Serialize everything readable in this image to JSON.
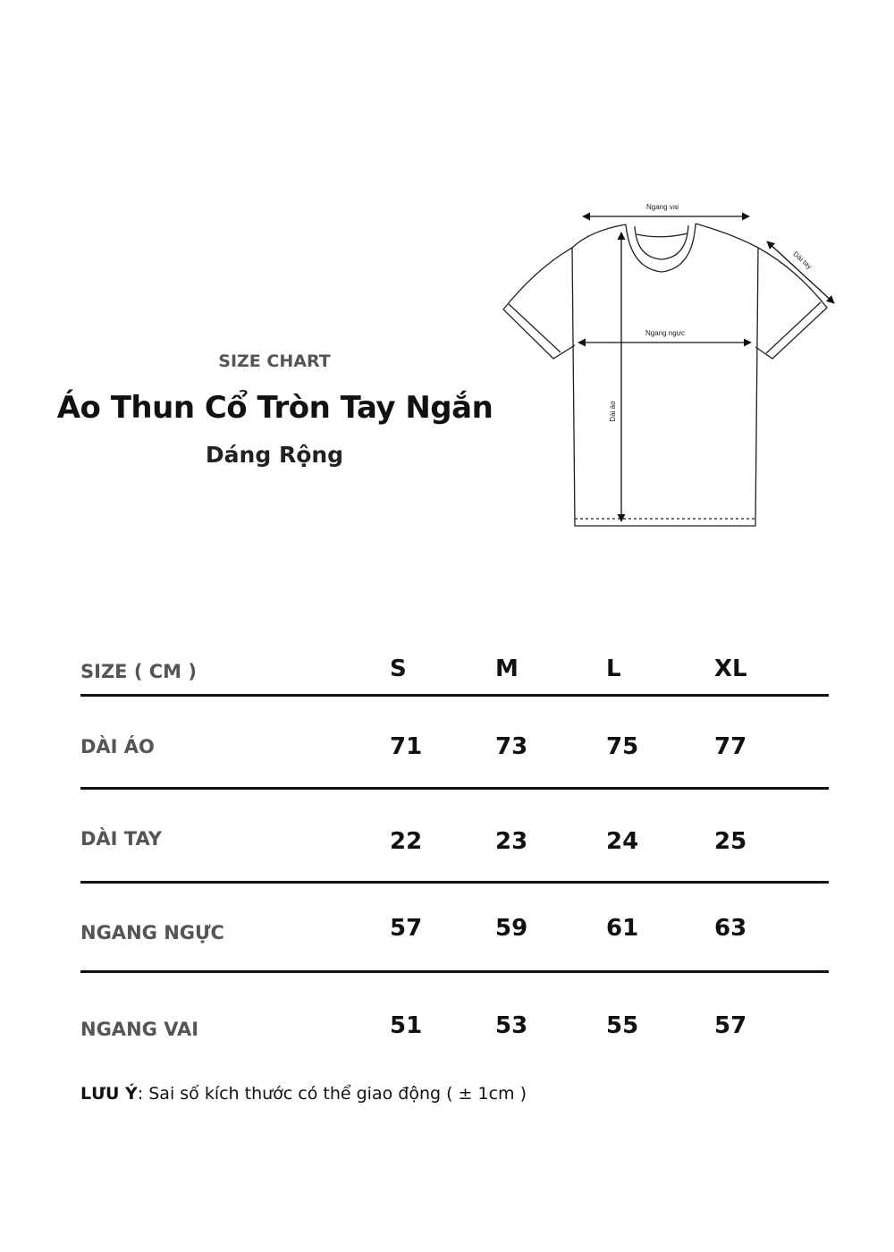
{
  "header": {
    "kicker": "SIZE CHART",
    "title": "Áo Thun Cổ Tròn Tay Ngắn",
    "subtitle": "Dáng Rộng"
  },
  "diagram": {
    "shoulder_label": "Ngang vai",
    "sleeve_label": "Dài tay",
    "chest_label": "Ngang ngực",
    "length_label": "Dài áo"
  },
  "table": {
    "header_label": "SIZE ( CM )",
    "sizes": [
      "S",
      "M",
      "L",
      "XL"
    ],
    "rows": [
      {
        "label": "DÀI ÁO",
        "values": [
          "71",
          "73",
          "75",
          "77"
        ]
      },
      {
        "label": "DÀI TAY",
        "values": [
          "22",
          "23",
          "24",
          "25"
        ]
      },
      {
        "label": "NGANG NGỰC",
        "values": [
          "57",
          "59",
          "61",
          "63"
        ]
      },
      {
        "label": "NGANG VAI",
        "values": [
          "51",
          "53",
          "55",
          "57"
        ]
      }
    ]
  },
  "note": {
    "label": "LƯU Ý",
    "text": ": Sai số kích thước có thể giao động ( ± 1cm )"
  }
}
